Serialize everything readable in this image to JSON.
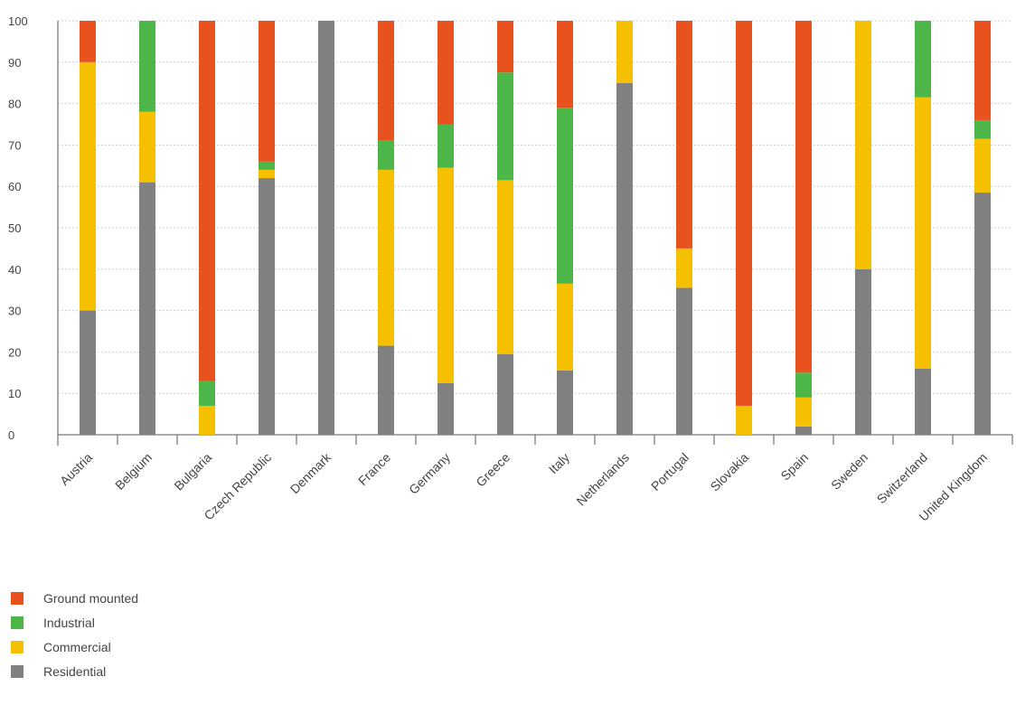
{
  "chart_data": {
    "type": "bar",
    "stacked": true,
    "categories": [
      "Austria",
      "Belgium",
      "Bulgaria",
      "Czech Republic",
      "Denmark",
      "France",
      "Germany",
      "Greece",
      "Italy",
      "Netherlands",
      "Portugal",
      "Slovakia",
      "Spain",
      "Sweden",
      "Switzerland",
      "United Kingdom"
    ],
    "series": [
      {
        "name": "Residential",
        "color": "#808080",
        "values": [
          30,
          61,
          0,
          62,
          100,
          21.5,
          12.5,
          19.5,
          15.5,
          85,
          35.5,
          0,
          2,
          40,
          16,
          58.5
        ]
      },
      {
        "name": "Commercial",
        "color": "#f5c000",
        "values": [
          60,
          17,
          7,
          2,
          0,
          42.5,
          52,
          42,
          21,
          15,
          9.5,
          7,
          7,
          60,
          65.5,
          13
        ]
      },
      {
        "name": "Industrial",
        "color": "#4cb648",
        "values": [
          0,
          22,
          6,
          2,
          0,
          7,
          10.5,
          26,
          42.5,
          0,
          0,
          0,
          6,
          0,
          18.5,
          4.5
        ]
      },
      {
        "name": "Ground mounted",
        "color": "#e8521e",
        "values": [
          10,
          0,
          87,
          34,
          0,
          29,
          25,
          12.5,
          21,
          0,
          55,
          93,
          85,
          0,
          0,
          24
        ]
      }
    ],
    "yticks": [
      0,
      10,
      20,
      30,
      40,
      50,
      60,
      70,
      80,
      90,
      100
    ],
    "ylim": [
      0,
      100
    ],
    "grid": true,
    "legend_position": "bottom-left"
  },
  "legend": [
    {
      "label": "Ground mounted",
      "color": "#e8521e"
    },
    {
      "label": "Industrial",
      "color": "#4cb648"
    },
    {
      "label": "Commercial",
      "color": "#f5c000"
    },
    {
      "label": "Residential",
      "color": "#808080"
    }
  ]
}
